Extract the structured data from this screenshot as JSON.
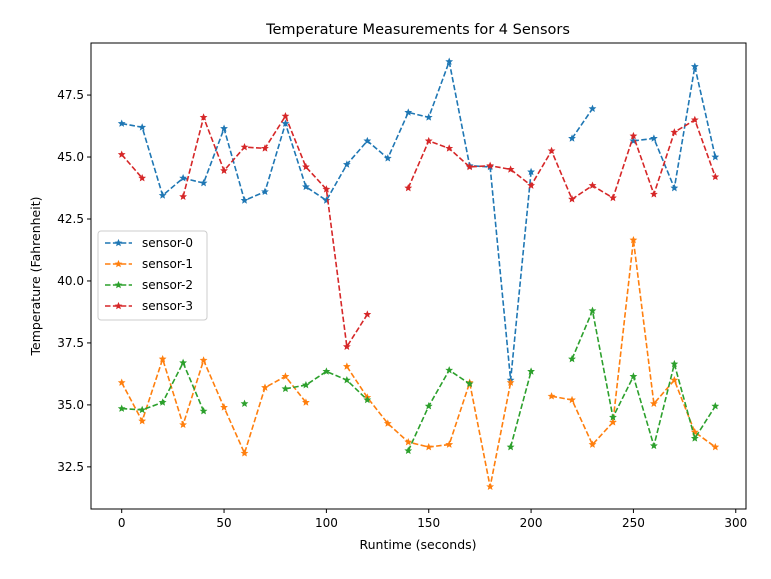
{
  "chart_data": {
    "type": "line",
    "title": "Temperature Measurements for 4 Sensors",
    "xlabel": "Runtime (seconds)",
    "ylabel": "Temperature (Fahrenheit)",
    "xlim": [
      -15,
      305
    ],
    "ylim": [
      30.8,
      49.6
    ],
    "xticks": [
      0,
      50,
      100,
      150,
      200,
      250,
      300
    ],
    "xtick_labels": [
      "0",
      "50",
      "100",
      "150",
      "200",
      "250",
      "300"
    ],
    "yticks": [
      32.5,
      35.0,
      37.5,
      40.0,
      42.5,
      45.0,
      47.5
    ],
    "ytick_labels": [
      "32.5",
      "35.0",
      "37.5",
      "40.0",
      "42.5",
      "45.0",
      "47.5"
    ],
    "grid": false,
    "legend_position": "center-left",
    "line_style": "dashed",
    "marker": "star",
    "x": [
      0,
      10,
      20,
      30,
      40,
      50,
      60,
      70,
      80,
      90,
      100,
      110,
      120,
      130,
      140,
      150,
      160,
      170,
      180,
      190,
      200,
      210,
      220,
      230,
      240,
      250,
      260,
      270,
      280,
      290
    ],
    "series": [
      {
        "name": "sensor-0",
        "color": "#1f77b4",
        "values": [
          46.35,
          46.2,
          43.45,
          44.15,
          43.95,
          46.15,
          43.25,
          43.6,
          46.35,
          43.8,
          43.25,
          44.7,
          45.65,
          44.95,
          46.8,
          46.6,
          48.85,
          44.65,
          44.6,
          36.0,
          44.4,
          null,
          45.75,
          46.95,
          null,
          45.65,
          45.75,
          43.75,
          48.65,
          45.0
        ]
      },
      {
        "name": "sensor-1",
        "color": "#ff7f0e",
        "values": [
          35.9,
          34.35,
          36.85,
          34.2,
          36.8,
          34.9,
          33.05,
          35.7,
          36.15,
          35.1,
          null,
          36.55,
          35.3,
          34.25,
          33.5,
          33.3,
          33.4,
          35.9,
          31.7,
          35.9,
          null,
          35.35,
          35.2,
          33.4,
          34.3,
          41.65,
          35.05,
          36.0,
          33.9,
          33.3
        ]
      },
      {
        "name": "sensor-2",
        "color": "#2ca02c",
        "values": [
          34.85,
          34.8,
          35.1,
          36.7,
          34.75,
          null,
          35.05,
          null,
          35.65,
          35.8,
          36.35,
          36.0,
          35.2,
          null,
          33.15,
          34.95,
          36.4,
          35.85,
          null,
          33.3,
          36.35,
          null,
          36.85,
          38.8,
          34.5,
          36.15,
          33.35,
          36.65,
          33.65,
          34.95
        ]
      },
      {
        "name": "sensor-3",
        "color": "#d62728",
        "values": [
          45.1,
          44.15,
          null,
          43.4,
          46.6,
          44.45,
          45.4,
          45.35,
          46.65,
          44.6,
          43.7,
          37.35,
          38.65,
          null,
          43.75,
          45.65,
          45.35,
          44.6,
          44.65,
          44.5,
          43.85,
          45.25,
          43.3,
          43.85,
          43.35,
          45.85,
          43.5,
          46.0,
          46.5,
          44.2
        ]
      }
    ]
  }
}
